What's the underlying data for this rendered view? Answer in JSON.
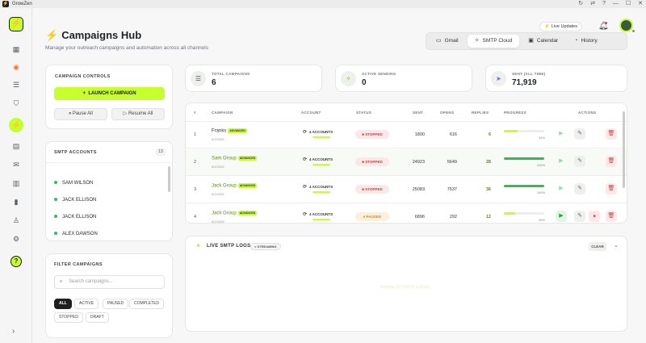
{
  "window": {
    "title": "GrowZen",
    "controls": [
      "↻",
      "⇄",
      "?",
      "—",
      "☐",
      "✕"
    ]
  },
  "header": {
    "title": "Campaigns Hub",
    "subtitle": "Manage your outreach campaigns and automation across all channels",
    "live_updates": "Live Updates",
    "tabs": [
      {
        "label": "Gmail",
        "icon": "mail-icon",
        "glyph": "▭"
      },
      {
        "label": "SMTP Cloud",
        "icon": "cloud-icon",
        "glyph": "✧"
      },
      {
        "label": "Calendar",
        "icon": "calendar-icon",
        "glyph": "▣"
      },
      {
        "label": "History",
        "icon": "history-icon",
        "glyph": "◔"
      }
    ],
    "active_tab": "SMTP Cloud"
  },
  "controls": {
    "title": "CAMPAIGN CONTROLS",
    "launch": "LAUNCH CAMPAIGN",
    "pause_all": "Pause All",
    "resume_all": "Resume All"
  },
  "smtp_accounts": {
    "title": "SMTP ACCOUNTS",
    "count": "13",
    "items": [
      "SAM WILSON",
      "JACK ELLISON",
      "JACK ELLISON",
      "ALEX DAWSON"
    ]
  },
  "filter": {
    "title": "FILTER CAMPAIGNS",
    "placeholder": "Search campaigns...",
    "chips": [
      "ALL",
      "ACTIVE",
      "PAUSED",
      "COMPLETED",
      "STOPPED",
      "DRAFT"
    ],
    "active_chip": "ALL"
  },
  "stats": [
    {
      "label": "TOTAL CAMPAIGNS",
      "value": "6",
      "icon": "list-icon"
    },
    {
      "label": "ACTIVE SENDING",
      "value": "0",
      "icon": "activity-icon"
    },
    {
      "label": "SENT (ALL TIME)",
      "value": "71,919",
      "icon": "send-icon"
    }
  ],
  "table": {
    "headers": [
      "#",
      "CAMPAIGN",
      "ACCOUNT",
      "STATUS",
      "SENT",
      "OPENS",
      "REPLIES",
      "PROGRESS",
      "ACTIONS"
    ],
    "rows": [
      {
        "num": "1",
        "name": "Franks",
        "tag": "ADVANCED",
        "date": "5/2/2026",
        "accounts": "4 ACCOUNTS",
        "status": "STOPPED",
        "sent": "1800",
        "opens": "616",
        "replies": "6",
        "progress": 0.34,
        "progress_label": "34%"
      },
      {
        "num": "2",
        "name": "Sam Group",
        "tag": "ADVANCED",
        "date": "5/2/2026",
        "accounts": "4 ACCOUNTS",
        "status": "STOPPED",
        "sent": "24923",
        "opens": "5649",
        "replies": "28",
        "progress": 1.0,
        "progress_label": "100%"
      },
      {
        "num": "3",
        "name": "Jack Group",
        "tag": "ADVANCED",
        "date": "5/2/2026",
        "accounts": "4 ACCOUNTS",
        "status": "STOPPED",
        "sent": "25083",
        "opens": "7537",
        "replies": "36",
        "progress": 1.0,
        "progress_label": "100%"
      },
      {
        "num": "4",
        "name": "Jack Group",
        "tag": "ADVANCED",
        "date": "5/2/2026",
        "accounts": "4 ACCOUNTS",
        "status": "PAUSED",
        "sent": "6896",
        "opens": "292",
        "replies": "12",
        "progress": 0.28,
        "progress_label": "28%"
      }
    ]
  },
  "logs": {
    "title": "LIVE SMTP LOGS",
    "badge": "STREAMING",
    "clear": "CLEAR",
    "empty": "Waiting for SMTP activity..."
  },
  "colors": {
    "accent": "#c7ff2e",
    "danger": "#d93a3a",
    "success": "#2fbd4f",
    "brand_orange": "#f4772e"
  }
}
